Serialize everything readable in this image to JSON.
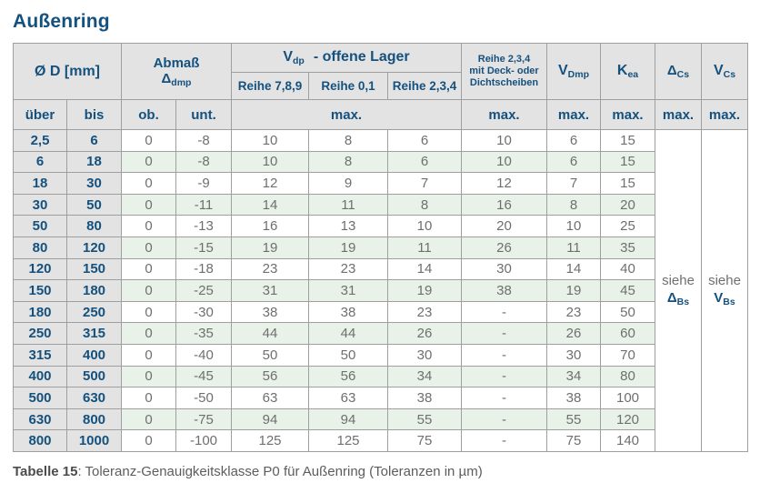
{
  "page": {
    "title": "Außenring",
    "caption_bold": "Tabelle 15",
    "caption_rest": ": Toleranz-Genauigkeitsklasse P0 für Außenring (Toleranzen in µm)"
  },
  "colors": {
    "accent_blue": "#15517e",
    "header_bg": "#e3e3e3",
    "row_green": "#e9f2e8",
    "row_white": "#ffffff",
    "border_gray": "#9f9f9f",
    "data_text_gray": "#6f6f6f"
  },
  "table": {
    "header": {
      "od": "Ø D  [mm]",
      "abmass_line1": "Abmaß",
      "abmass_main": "Δ",
      "abmass_sub": "dmp",
      "vdp_main": "V",
      "vdp_sub": "dp",
      "vdp_rest": "-  offene Lager",
      "reihe789": "Reihe 7,8,9",
      "reihe01": "Reihe 0,1",
      "reihe234": "Reihe 2,3,4",
      "deck_line1": "Reihe 2,3,4",
      "deck_line2": "mit Deck- oder",
      "deck_line3": "Dichtscheiben",
      "vdmp_main": "V",
      "vdmp_sub": "Dmp",
      "kea_main": "K",
      "kea_sub": "ea",
      "dcs_main": "Δ",
      "dcs_sub": "Cs",
      "vcs_main": "V",
      "vcs_sub": "Cs",
      "ueber": "über",
      "bis": "bis",
      "ob": "ob.",
      "unt": "unt.",
      "max1": "max.",
      "max2": "max.",
      "max3": "max.",
      "max4": "max.",
      "max5": "max.",
      "max6": "max."
    },
    "siehe_dbs": {
      "word": "siehe",
      "main": "Δ",
      "sub": "Bs"
    },
    "siehe_vbs": {
      "word": "siehe",
      "main": "V",
      "sub": "Bs"
    },
    "rows": [
      {
        "ueber": "2,5",
        "bis": "6",
        "ob": "0",
        "unt": "-8",
        "r789": "10",
        "r01": "8",
        "r234": "6",
        "deck": "10",
        "vdmp": "6",
        "kea": "15"
      },
      {
        "ueber": "6",
        "bis": "18",
        "ob": "0",
        "unt": "-8",
        "r789": "10",
        "r01": "8",
        "r234": "6",
        "deck": "10",
        "vdmp": "6",
        "kea": "15"
      },
      {
        "ueber": "18",
        "bis": "30",
        "ob": "0",
        "unt": "-9",
        "r789": "12",
        "r01": "9",
        "r234": "7",
        "deck": "12",
        "vdmp": "7",
        "kea": "15"
      },
      {
        "ueber": "30",
        "bis": "50",
        "ob": "0",
        "unt": "-11",
        "r789": "14",
        "r01": "11",
        "r234": "8",
        "deck": "16",
        "vdmp": "8",
        "kea": "20"
      },
      {
        "ueber": "50",
        "bis": "80",
        "ob": "0",
        "unt": "-13",
        "r789": "16",
        "r01": "13",
        "r234": "10",
        "deck": "20",
        "vdmp": "10",
        "kea": "25"
      },
      {
        "ueber": "80",
        "bis": "120",
        "ob": "0",
        "unt": "-15",
        "r789": "19",
        "r01": "19",
        "r234": "11",
        "deck": "26",
        "vdmp": "11",
        "kea": "35"
      },
      {
        "ueber": "120",
        "bis": "150",
        "ob": "0",
        "unt": "-18",
        "r789": "23",
        "r01": "23",
        "r234": "14",
        "deck": "30",
        "vdmp": "14",
        "kea": "40"
      },
      {
        "ueber": "150",
        "bis": "180",
        "ob": "0",
        "unt": "-25",
        "r789": "31",
        "r01": "31",
        "r234": "19",
        "deck": "38",
        "vdmp": "19",
        "kea": "45"
      },
      {
        "ueber": "180",
        "bis": "250",
        "ob": "0",
        "unt": "-30",
        "r789": "38",
        "r01": "38",
        "r234": "23",
        "deck": "-",
        "vdmp": "23",
        "kea": "50"
      },
      {
        "ueber": "250",
        "bis": "315",
        "ob": "0",
        "unt": "-35",
        "r789": "44",
        "r01": "44",
        "r234": "26",
        "deck": "-",
        "vdmp": "26",
        "kea": "60"
      },
      {
        "ueber": "315",
        "bis": "400",
        "ob": "0",
        "unt": "-40",
        "r789": "50",
        "r01": "50",
        "r234": "30",
        "deck": "-",
        "vdmp": "30",
        "kea": "70"
      },
      {
        "ueber": "400",
        "bis": "500",
        "ob": "0",
        "unt": "-45",
        "r789": "56",
        "r01": "56",
        "r234": "34",
        "deck": "-",
        "vdmp": "34",
        "kea": "80"
      },
      {
        "ueber": "500",
        "bis": "630",
        "ob": "0",
        "unt": "-50",
        "r789": "63",
        "r01": "63",
        "r234": "38",
        "deck": "-",
        "vdmp": "38",
        "kea": "100"
      },
      {
        "ueber": "630",
        "bis": "800",
        "ob": "0",
        "unt": "-75",
        "r789": "94",
        "r01": "94",
        "r234": "55",
        "deck": "-",
        "vdmp": "55",
        "kea": "120"
      },
      {
        "ueber": "800",
        "bis": "1000",
        "ob": "0",
        "unt": "-100",
        "r789": "125",
        "r01": "125",
        "r234": "75",
        "deck": "-",
        "vdmp": "75",
        "kea": "140"
      }
    ]
  }
}
